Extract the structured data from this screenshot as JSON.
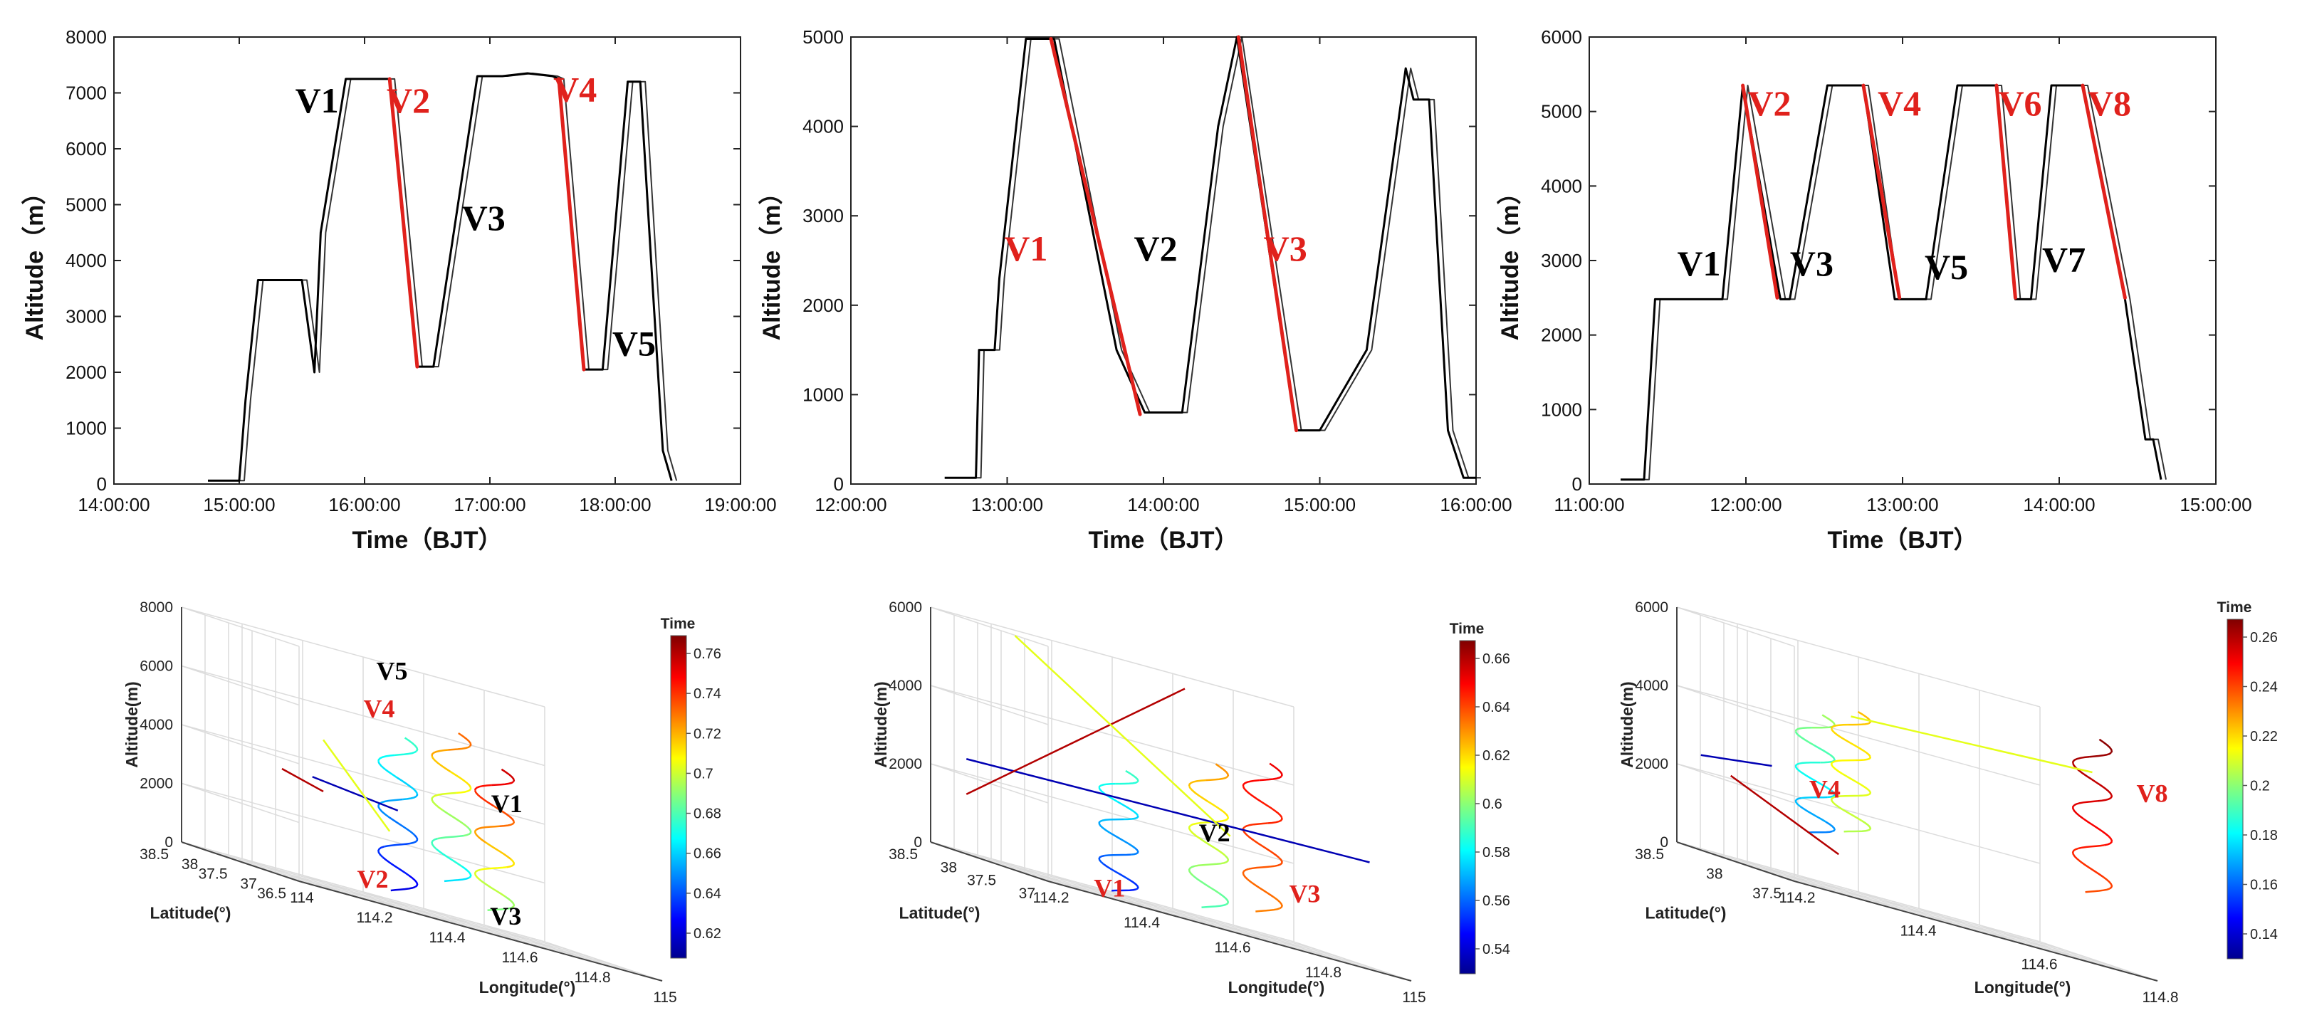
{
  "chart_data": [
    {
      "type": "line",
      "panel": "top-left",
      "xlabel": "Time（BJT）",
      "ylabel": "Altitude（m）",
      "xticks": [
        "14:00:00",
        "15:00:00",
        "16:00:00",
        "17:00:00",
        "18:00:00",
        "19:00:00"
      ],
      "xlim": [
        14.0,
        19.0
      ],
      "ylim": [
        0,
        8000
      ],
      "yticks": [
        0,
        1000,
        2000,
        3000,
        4000,
        5000,
        6000,
        7000,
        8000
      ],
      "series": [
        {
          "name": "flight",
          "color": "#000000",
          "x": [
            14.75,
            15.0,
            15.05,
            15.15,
            15.5,
            15.6,
            15.65,
            15.85,
            15.95,
            16.2,
            16.42,
            16.55,
            16.9,
            17.1,
            17.3,
            17.5,
            17.55,
            17.75,
            17.9,
            18.1,
            18.2,
            18.3,
            18.38,
            18.45
          ],
          "y": [
            60,
            60,
            1500,
            3650,
            3650,
            2000,
            4500,
            7250,
            7250,
            7250,
            2100,
            2100,
            7300,
            7300,
            7350,
            7300,
            7250,
            2050,
            2050,
            7200,
            7200,
            3500,
            600,
            60
          ]
        },
        {
          "name": "descent segments",
          "color": "#e0211c",
          "segments": [
            [
              16.2,
              7250,
              16.42,
              2100
            ],
            [
              17.55,
              7250,
              17.75,
              2050
            ]
          ]
        }
      ],
      "labels": [
        {
          "text": "V1",
          "x": 15.62,
          "y": 6650,
          "color": "#000000"
        },
        {
          "text": "V2",
          "x": 16.35,
          "y": 6650,
          "color": "#e0211c"
        },
        {
          "text": "V3",
          "x": 16.95,
          "y": 4550,
          "color": "#000000"
        },
        {
          "text": "V4",
          "x": 17.68,
          "y": 6850,
          "color": "#e0211c"
        },
        {
          "text": "V5",
          "x": 18.15,
          "y": 2300,
          "color": "#000000"
        }
      ]
    },
    {
      "type": "line",
      "panel": "top-middle",
      "xlabel": "Time（BJT）",
      "ylabel": "Altitude（m）",
      "xticks": [
        "12:00:00",
        "13:00:00",
        "14:00:00",
        "15:00:00",
        "16:00:00"
      ],
      "xlim": [
        12.0,
        16.0
      ],
      "ylim": [
        0,
        5000
      ],
      "yticks": [
        0,
        1000,
        2000,
        3000,
        4000,
        5000
      ],
      "series": [
        {
          "name": "flight",
          "color": "#000000",
          "x": [
            12.6,
            12.8,
            12.82,
            12.92,
            12.95,
            13.12,
            13.3,
            13.7,
            13.88,
            14.0,
            14.12,
            14.35,
            14.47,
            14.85,
            15.0,
            15.1,
            15.3,
            15.55,
            15.6,
            15.7,
            15.82,
            15.92,
            16.0
          ],
          "y": [
            70,
            70,
            1500,
            1500,
            2300,
            4980,
            4980,
            1500,
            800,
            800,
            800,
            4000,
            5000,
            600,
            600,
            900,
            1500,
            4650,
            4300,
            4300,
            600,
            70,
            70
          ]
        },
        {
          "name": "descent segments",
          "color": "#e0211c",
          "segments": [
            [
              13.28,
              4980,
              13.85,
              780
            ],
            [
              14.48,
              5000,
              14.85,
              600
            ]
          ]
        }
      ],
      "labels": [
        {
          "text": "V1",
          "x": 13.12,
          "y": 2500,
          "color": "#e0211c"
        },
        {
          "text": "V2",
          "x": 13.95,
          "y": 2500,
          "color": "#000000"
        },
        {
          "text": "V3",
          "x": 14.78,
          "y": 2500,
          "color": "#e0211c"
        }
      ]
    },
    {
      "type": "line",
      "panel": "top-right",
      "xlabel": "Time（BJT）",
      "ylabel": "Altitude（m）",
      "xticks": [
        "11:00:00",
        "12:00:00",
        "13:00:00",
        "14:00:00",
        "15:00:00"
      ],
      "xlim": [
        11.0,
        15.0
      ],
      "ylim": [
        0,
        6000
      ],
      "yticks": [
        0,
        1000,
        2000,
        3000,
        4000,
        5000,
        6000
      ],
      "series": [
        {
          "name": "flight",
          "color": "#000000",
          "x": [
            11.2,
            11.35,
            11.42,
            11.85,
            11.98,
            12.22,
            12.28,
            12.52,
            12.75,
            12.95,
            13.05,
            13.15,
            13.35,
            13.6,
            13.72,
            13.82,
            13.95,
            14.15,
            14.42,
            14.55,
            14.6,
            14.65
          ],
          "y": [
            60,
            60,
            2480,
            2480,
            5350,
            2480,
            2480,
            5350,
            5350,
            2480,
            2480,
            2480,
            5350,
            5350,
            2480,
            2480,
            5350,
            5350,
            2480,
            600,
            600,
            60
          ]
        },
        {
          "name": "descent segments",
          "color": "#e0211c",
          "segments": [
            [
              11.98,
              5350,
              12.2,
              2500
            ],
            [
              12.75,
              5350,
              12.98,
              2500
            ],
            [
              13.6,
              5350,
              13.72,
              2500
            ],
            [
              14.15,
              5350,
              14.42,
              2500
            ]
          ]
        }
      ],
      "labels": [
        {
          "text": "V1",
          "x": 11.7,
          "y": 2800,
          "color": "#000000"
        },
        {
          "text": "V2",
          "x": 12.15,
          "y": 4950,
          "color": "#e0211c"
        },
        {
          "text": "V3",
          "x": 12.42,
          "y": 2800,
          "color": "#000000"
        },
        {
          "text": "V4",
          "x": 12.98,
          "y": 4950,
          "color": "#e0211c"
        },
        {
          "text": "V5",
          "x": 13.28,
          "y": 2750,
          "color": "#000000"
        },
        {
          "text": "V6",
          "x": 13.75,
          "y": 4950,
          "color": "#e0211c"
        },
        {
          "text": "V7",
          "x": 14.03,
          "y": 2850,
          "color": "#000000"
        },
        {
          "text": "V8",
          "x": 14.32,
          "y": 4950,
          "color": "#e0211c"
        }
      ]
    },
    {
      "type": "3d-line",
      "panel": "bottom-left",
      "xlabel": "Latitude(°)",
      "ylabel": "Longitude(°)",
      "zlabel": "Altitude(m)",
      "lat_ticks": [
        "38.5",
        "38",
        "37.5",
        "37",
        "36.5"
      ],
      "lon_ticks": [
        "114",
        "114.2",
        "114.4",
        "114.6",
        "114.8",
        "115"
      ],
      "alt_ticks": [
        "0",
        "2000",
        "4000",
        "6000",
        "8000"
      ],
      "colorbar": {
        "title": "Time",
        "ticks": [
          "0.62",
          "0.64",
          "0.66",
          "0.68",
          "0.7",
          "0.72",
          "0.74",
          "0.76"
        ]
      },
      "labels": [
        {
          "text": "V5",
          "color": "#000000"
        },
        {
          "text": "V4",
          "color": "#e0211c"
        },
        {
          "text": "V1",
          "color": "#000000"
        },
        {
          "text": "V2",
          "color": "#e0211c"
        },
        {
          "text": "V3",
          "color": "#000000"
        }
      ]
    },
    {
      "type": "3d-line",
      "panel": "bottom-middle",
      "xlabel": "Latitude(°)",
      "ylabel": "Longitude(°)",
      "zlabel": "Altitude(m)",
      "lat_ticks": [
        "38.5",
        "38",
        "37.5",
        "37"
      ],
      "lon_ticks": [
        "114.2",
        "114.4",
        "114.6",
        "114.8",
        "115"
      ],
      "alt_ticks": [
        "0",
        "2000",
        "4000",
        "6000"
      ],
      "colorbar": {
        "title": "Time",
        "ticks": [
          "0.54",
          "0.56",
          "0.58",
          "0.6",
          "0.62",
          "0.64",
          "0.66"
        ]
      },
      "labels": [
        {
          "text": "V2",
          "color": "#000000"
        },
        {
          "text": "V1",
          "color": "#e0211c"
        },
        {
          "text": "V3",
          "color": "#e0211c"
        }
      ]
    },
    {
      "type": "3d-line",
      "panel": "bottom-right",
      "xlabel": "Latitude(°)",
      "ylabel": "Longitude(°)",
      "zlabel": "Altitude(m)",
      "lat_ticks": [
        "38.5",
        "38",
        "37.5"
      ],
      "lon_ticks": [
        "114.2",
        "114.4",
        "114.6",
        "114.8"
      ],
      "alt_ticks": [
        "0",
        "2000",
        "4000",
        "6000"
      ],
      "colorbar": {
        "title": "Time",
        "ticks": [
          "0.14",
          "0.16",
          "0.18",
          "0.2",
          "0.22",
          "0.24",
          "0.26"
        ]
      },
      "labels": [
        {
          "text": "V4",
          "color": "#e0211c"
        },
        {
          "text": "V8",
          "color": "#e0211c"
        }
      ]
    }
  ]
}
